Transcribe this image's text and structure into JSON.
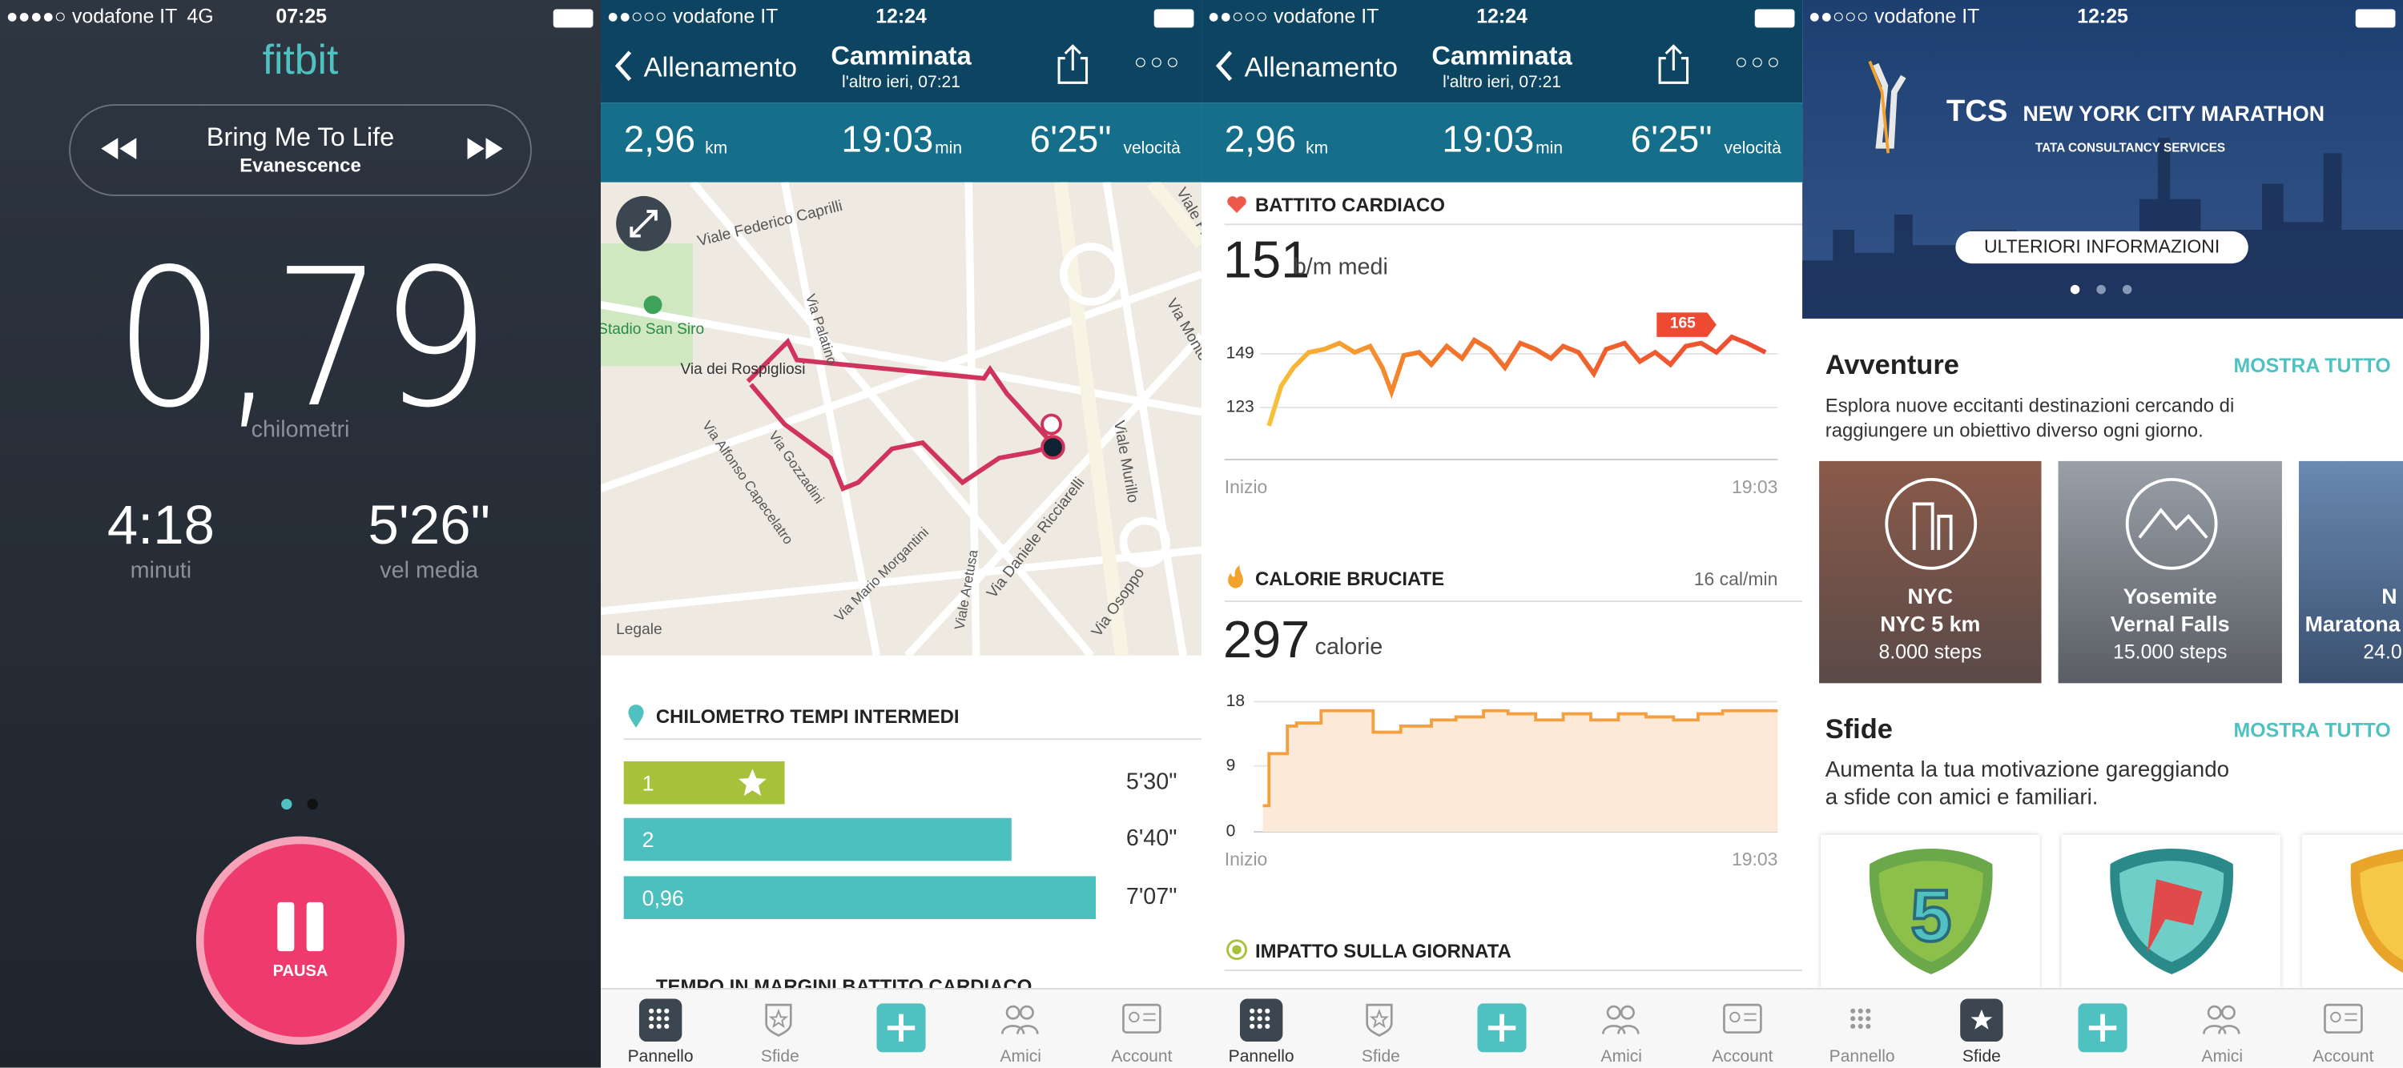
{
  "screens": [
    {
      "status": {
        "carrier": "vodafone IT",
        "network": "4G",
        "time": "07:25"
      },
      "logo": "fitbit",
      "music": {
        "title": "Bring Me To Life",
        "artist": "Evanescence"
      },
      "distance": {
        "value": "0,79",
        "unit": "chilometri"
      },
      "stats": [
        {
          "value": "4:18",
          "label": "minuti"
        },
        {
          "value": "5'26\"",
          "label": "vel media"
        }
      ],
      "button": "PAUSA"
    },
    {
      "status": {
        "carrier": "vodafone IT",
        "time": "12:24"
      },
      "nav": {
        "back": "Allenamento",
        "title": "Camminata",
        "subtitle": "l'altro ieri, 07:21"
      },
      "summary": [
        {
          "value": "2,96",
          "unit": "km"
        },
        {
          "value": "19:03",
          "unit": "min"
        },
        {
          "value": "6'25\"",
          "unit": "velocità"
        }
      ],
      "map": {
        "labels": [
          "Viale Federico Caprilli",
          "Stadio San Siro",
          "Via dei Rospigliosi",
          "Via Palatino",
          "Via Alfonso Capecelatro",
          "Via Gozzadini",
          "Via Mario Morgantini",
          "Viale Aretusa",
          "Via Daniele Ricciarelli",
          "Viale Murillo",
          "Via Osoppo",
          "Via Monte",
          "Viale Franc"
        ],
        "legal": "Legale"
      },
      "splits": {
        "title": "CHILOMETRO TEMPI INTERMEDI",
        "rows": [
          {
            "km": "1",
            "time": "5'30\""
          },
          {
            "km": "2",
            "time": "6'40\""
          },
          {
            "km": "0,96",
            "time": "7'07\""
          }
        ]
      },
      "next_section": "TEMPO IN MARGINI BATTITO CARDIACO"
    },
    {
      "status": {
        "carrier": "vodafone IT",
        "time": "12:24"
      },
      "nav": {
        "back": "Allenamento",
        "title": "Camminata",
        "subtitle": "l'altro ieri, 07:21"
      },
      "summary": [
        {
          "value": "2,96",
          "unit": "km"
        },
        {
          "value": "19:03",
          "unit": "min"
        },
        {
          "value": "6'25\"",
          "unit": "velocità"
        }
      ],
      "heart": {
        "title": "BATTITO CARDIACO",
        "value": "151",
        "unit": "b/m medi",
        "ticks": [
          "149",
          "123"
        ],
        "peak": "165",
        "start": "Inizio",
        "end": "19:03"
      },
      "calories": {
        "title": "CALORIE BRUCIATE",
        "rate": "16 cal/min",
        "value": "297",
        "unit": "calorie",
        "ticks": [
          "18",
          "9",
          "0"
        ],
        "start": "Inizio",
        "end": "19:03"
      },
      "next_section": "IMPATTO SULLA GIORNATA"
    },
    {
      "status": {
        "carrier": "vodafone IT",
        "time": "12:25"
      },
      "banner": {
        "title_a": "TCS",
        "title_b": "NEW YORK CITY MARATHON",
        "sponsor": "TATA CONSULTANCY SERVICES",
        "button": "ULTERIORI INFORMAZIONI"
      },
      "adventures": {
        "title": "Avventure",
        "more": "MOSTRA TUTTO",
        "description": "Esplora nuove eccitanti destinazioni cercando di raggiungere un obiettivo diverso ogni giorno.",
        "cards": [
          {
            "place": "NYC",
            "name": "NYC 5 km",
            "steps": "8.000 steps"
          },
          {
            "place": "Yosemite",
            "name": "Vernal Falls",
            "steps": "15.000 steps"
          },
          {
            "place": "N",
            "name": "Maratona",
            "steps": "24.0"
          }
        ]
      },
      "challenges": {
        "title": "Sfide",
        "more": "MOSTRA TUTTO",
        "description": "Aumenta la tua motivazione gareggiando a sfide con amici e familiari."
      }
    }
  ],
  "tabs": [
    "Pannello",
    "Sfide",
    "Amici",
    "Account"
  ]
}
